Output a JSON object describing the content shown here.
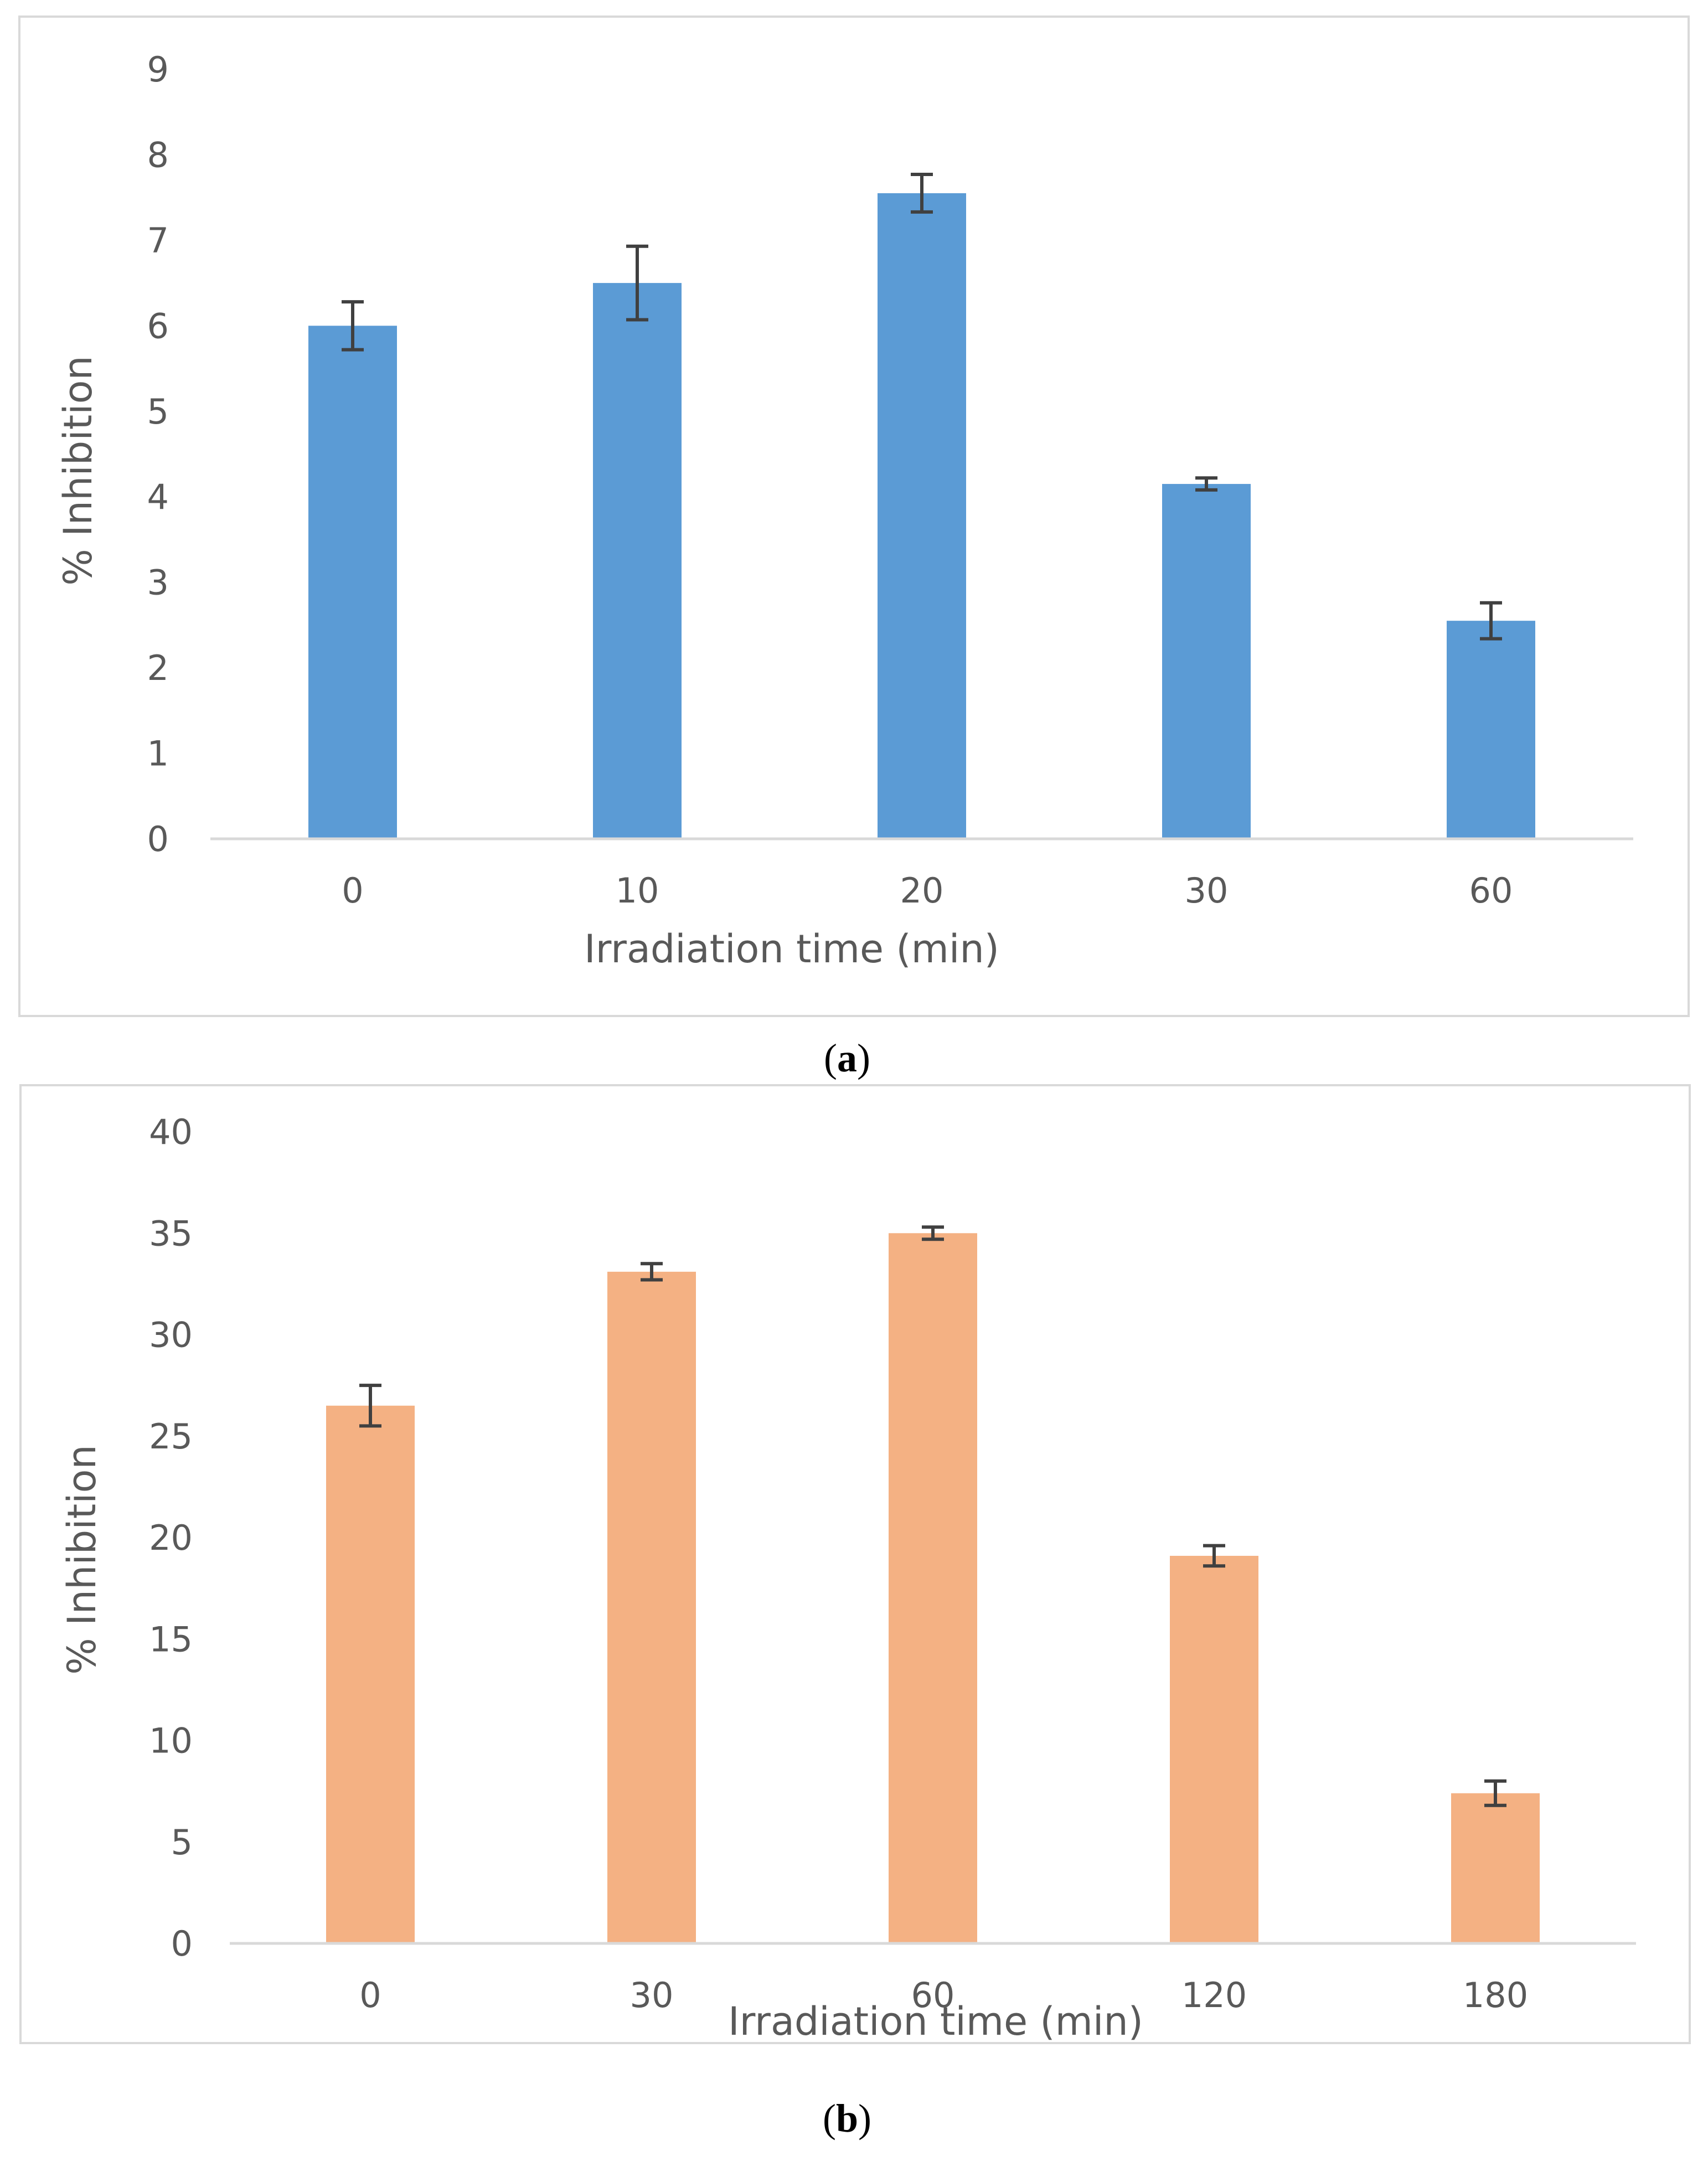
{
  "chart_data": [
    {
      "id": "a",
      "type": "bar",
      "caption_letter": "a",
      "caption_open": "(",
      "caption_close": ")",
      "categories": [
        "0",
        "10",
        "20",
        "30",
        "60"
      ],
      "values": [
        6.0,
        6.5,
        7.55,
        4.15,
        2.55
      ],
      "errors": [
        0.28,
        0.43,
        0.22,
        0.07,
        0.21
      ],
      "xlabel": "Irradiation time (min)",
      "ylabel": "% Inhibition",
      "ylim": [
        0,
        9
      ],
      "yticks": [
        "0",
        "1",
        "2",
        "3",
        "4",
        "5",
        "6",
        "7",
        "8",
        "9"
      ],
      "bar_color": "#5B9BD5",
      "grid": false
    },
    {
      "id": "b",
      "type": "bar",
      "caption_letter": "b",
      "caption_open": "(",
      "caption_close": ")",
      "categories": [
        "0",
        "30",
        "60",
        "120",
        "180"
      ],
      "values": [
        26.5,
        33.1,
        35.0,
        19.1,
        7.4
      ],
      "errors": [
        1.0,
        0.4,
        0.3,
        0.5,
        0.6
      ],
      "xlabel": "Irradiation time (min)",
      "ylabel": "% Inhibition",
      "ylim": [
        0,
        40
      ],
      "yticks": [
        "0",
        "5",
        "10",
        "15",
        "20",
        "25",
        "30",
        "35",
        "40"
      ],
      "bar_color": "#F4B183",
      "grid": false
    }
  ],
  "colors": {
    "frame": "#D9D9D9",
    "axis": "#D9D9D9",
    "text": "#595959",
    "error_bar": "#404040"
  }
}
